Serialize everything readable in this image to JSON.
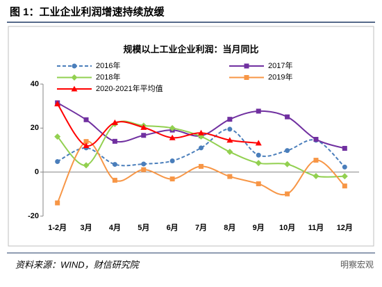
{
  "figure_title": "图 1：工业企业利润增速持续放缓",
  "source": "资料来源：WIND，财信研究院",
  "watermark": "明察宏观",
  "chart_data": {
    "type": "line",
    "title": "规模以上工业企业利润：当月同比",
    "categories": [
      "1-2月",
      "3月",
      "4月",
      "5月",
      "6月",
      "7月",
      "8月",
      "9月",
      "10月",
      "11月",
      "12月"
    ],
    "series": [
      {
        "name": "2016年",
        "color": "#4a7ebb",
        "dash": true,
        "marker": "circle",
        "values": [
          4.8,
          11,
          3.5,
          3.7,
          5.1,
          11,
          19.5,
          7.7,
          9.8,
          14.5,
          2.3
        ]
      },
      {
        "name": "2017年",
        "color": "#7030a0",
        "marker": "square",
        "values": [
          31.5,
          23.8,
          14,
          16.7,
          19.1,
          16.5,
          24,
          27.7,
          25.1,
          14.9,
          10.8
        ]
      },
      {
        "name": "2018年",
        "color": "#92d050",
        "marker": "diamond",
        "values": [
          16.1,
          3.1,
          21.9,
          21.1,
          20,
          16.2,
          9.2,
          4.1,
          3.6,
          -1.8,
          -1.9
        ]
      },
      {
        "name": "2019年",
        "color": "#f79646",
        "marker": "square",
        "values": [
          -14,
          13.9,
          -3.7,
          1.1,
          -3.1,
          2.6,
          -2,
          -5.3,
          -9.9,
          5.4,
          -6.3
        ]
      },
      {
        "name": "2020-2021年平均值",
        "color": "#ff0000",
        "marker": "triangle",
        "values": [
          31,
          12,
          22.5,
          20.3,
          15.6,
          17.8,
          14.5,
          13.2,
          null,
          null,
          null
        ]
      }
    ],
    "ylim": [
      -20,
      40
    ],
    "yticks": [
      -20,
      0,
      20,
      40
    ],
    "grid": false
  }
}
